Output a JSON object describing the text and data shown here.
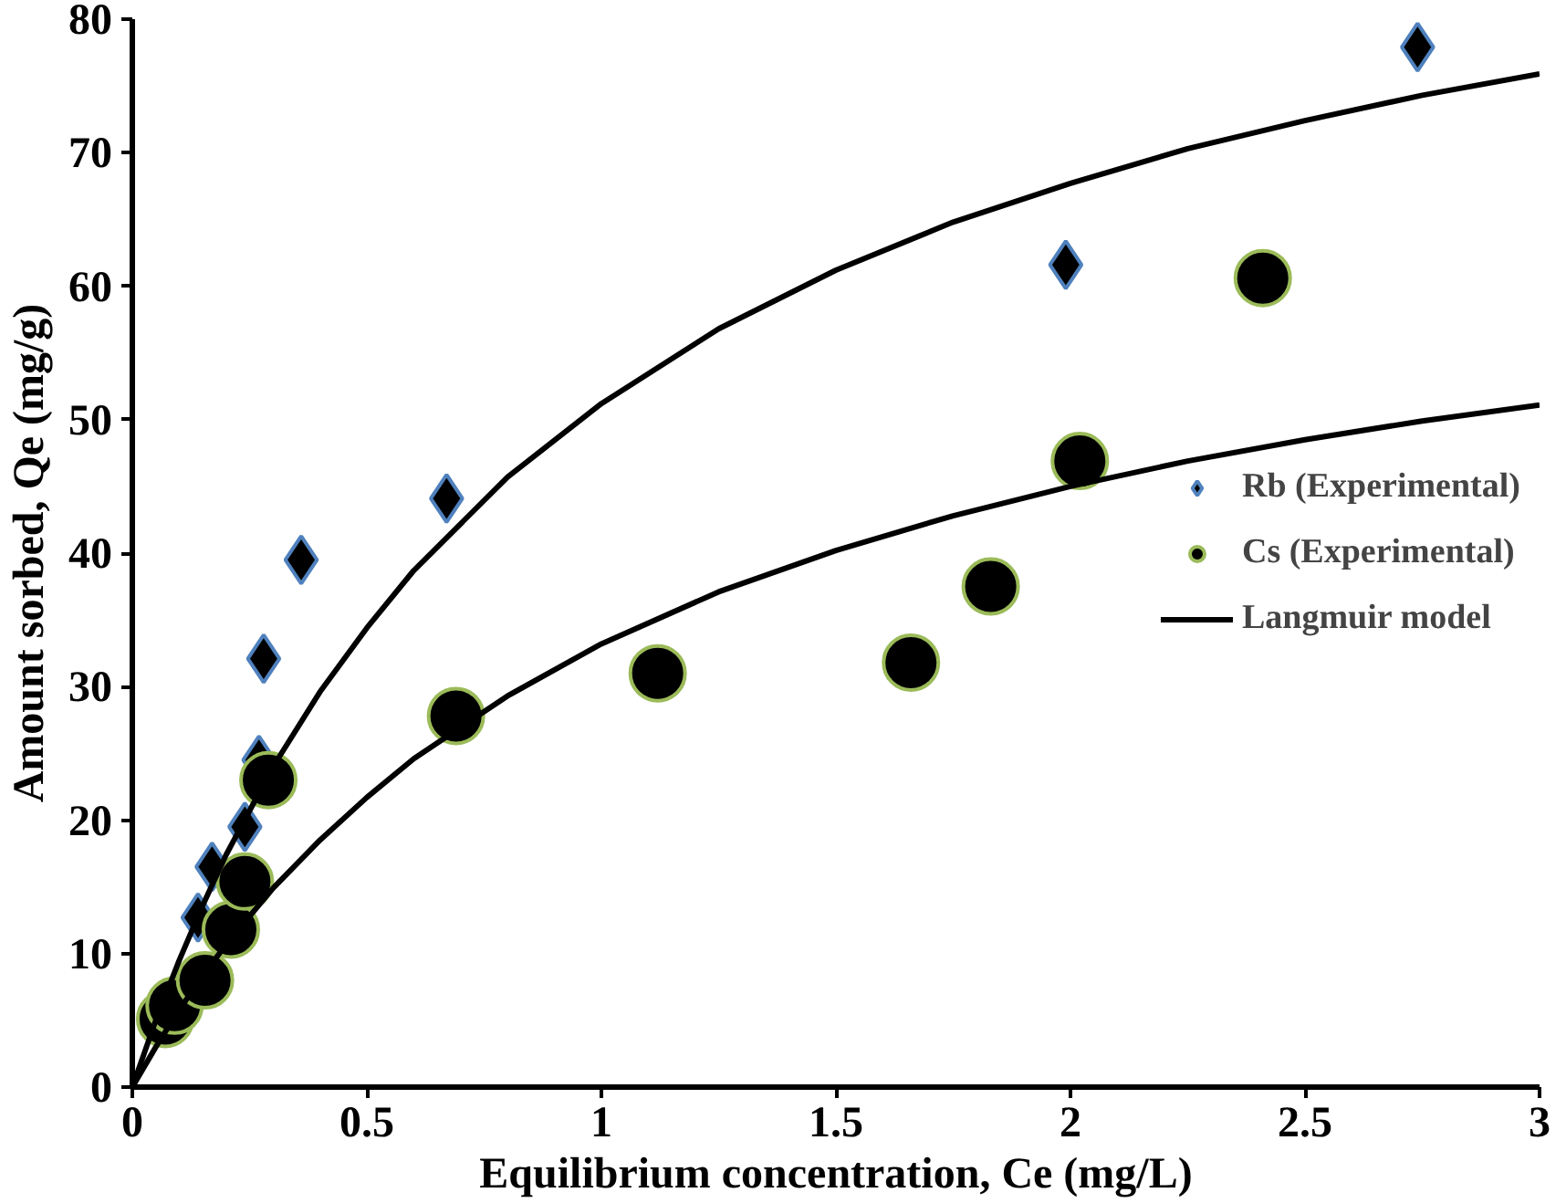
{
  "chart_data": {
    "type": "scatter",
    "xlabel": "Equilibrium concentration, Ce (mg/L)",
    "ylabel": "Amount sorbed, Qe (mg/g)",
    "xlim": [
      0,
      3
    ],
    "ylim": [
      0,
      80
    ],
    "xticks": [
      0,
      0.5,
      1,
      1.5,
      2,
      2.5,
      3
    ],
    "yticks": [
      0,
      10,
      20,
      30,
      40,
      50,
      60,
      70,
      80
    ],
    "grid": false,
    "legend": "right",
    "series": [
      {
        "name": "Rb (Experimental)",
        "marker": "diamond",
        "color": "#000000",
        "x": [
          0.14,
          0.17,
          0.24,
          0.27,
          0.28,
          0.36,
          0.67,
          1.99,
          2.74
        ],
        "values": [
          12.7,
          16.5,
          19.5,
          24.5,
          32.1,
          39.5,
          44.1,
          61.6,
          77.9
        ]
      },
      {
        "name": "Cs (Experimental)",
        "marker": "circle",
        "color": "#000000",
        "x": [
          0.07,
          0.09,
          0.155,
          0.21,
          0.24,
          0.29,
          0.69,
          1.12,
          1.66,
          1.83,
          2.02,
          2.41
        ],
        "values": [
          5.1,
          6.1,
          8.0,
          11.8,
          15.4,
          23.0,
          27.8,
          31.0,
          31.8,
          37.5,
          46.9,
          60.6
        ]
      },
      {
        "name": "Langmuir model",
        "type": "line",
        "marker": "none",
        "color": "#000000",
        "x": [
          0,
          0.05,
          0.1,
          0.15,
          0.2,
          0.3,
          0.4,
          0.5,
          0.6,
          0.8,
          1,
          1.25,
          1.5,
          1.75,
          2,
          2.25,
          2.5,
          2.75,
          3
        ],
        "values": [
          0,
          5.0,
          9.5,
          13.6,
          17.4,
          24.0,
          29.6,
          34.4,
          38.7,
          45.7,
          51.2,
          56.8,
          61.2,
          64.8,
          67.7,
          70.3,
          72.4,
          74.3,
          75.9
        ]
      },
      {
        "type": "line",
        "marker": "none",
        "color": "#000000",
        "x": [
          0,
          0.05,
          0.1,
          0.15,
          0.2,
          0.3,
          0.4,
          0.5,
          0.6,
          0.8,
          1,
          1.25,
          1.5,
          1.75,
          2,
          2.25,
          2.5,
          2.75,
          3
        ],
        "values": [
          0,
          3.0,
          5.8,
          8.3,
          10.7,
          14.9,
          18.5,
          21.7,
          24.6,
          29.3,
          33.2,
          37.1,
          40.2,
          42.8,
          45.0,
          46.9,
          48.5,
          49.9,
          51.1
        ]
      }
    ]
  }
}
